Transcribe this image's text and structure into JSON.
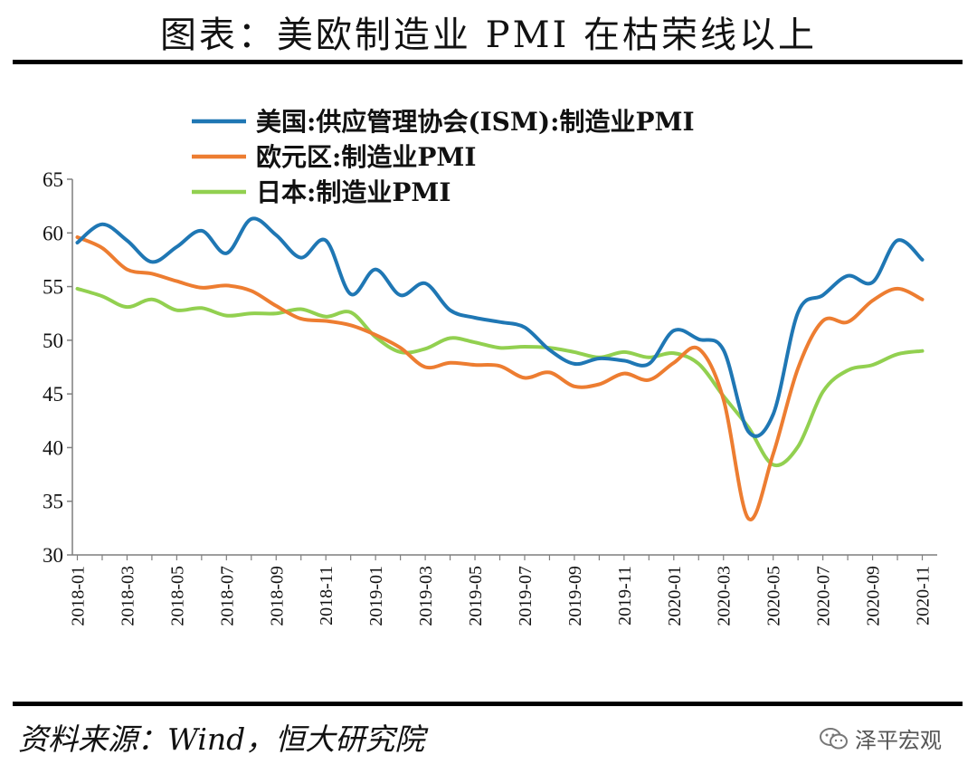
{
  "header": {
    "title": "图表：美欧制造业 PMI 在枯荣线以上"
  },
  "footer": {
    "source": "资料来源：Wind，恒大研究院",
    "watermark": "泽平宏观",
    "watermark_icon": "wechat-icon"
  },
  "colors": {
    "us": "#1f77b4",
    "euro": "#ed7d31",
    "japan": "#92d050",
    "axis": "#7f7f7f"
  },
  "chart_data": {
    "type": "line",
    "ylim": [
      30,
      65
    ],
    "yticks": [
      30,
      35,
      40,
      45,
      50,
      55,
      60,
      65
    ],
    "x": [
      "2018-01",
      "2018-02",
      "2018-03",
      "2018-04",
      "2018-05",
      "2018-06",
      "2018-07",
      "2018-08",
      "2018-09",
      "2018-10",
      "2018-11",
      "2018-12",
      "2019-01",
      "2019-02",
      "2019-03",
      "2019-04",
      "2019-05",
      "2019-06",
      "2019-07",
      "2019-08",
      "2019-09",
      "2019-10",
      "2019-11",
      "2019-12",
      "2020-01",
      "2020-02",
      "2020-03",
      "2020-04",
      "2020-05",
      "2020-06",
      "2020-07",
      "2020-08",
      "2020-09",
      "2020-10",
      "2020-11"
    ],
    "xtick_labels": [
      "2018-01",
      "2018-03",
      "2018-05",
      "2018-07",
      "2018-09",
      "2018-11",
      "2019-01",
      "2019-03",
      "2019-05",
      "2019-07",
      "2019-09",
      "2019-11",
      "2020-01",
      "2020-03",
      "2020-05",
      "2020-07",
      "2020-09",
      "2020-11"
    ],
    "legend_position": "top-left",
    "series": [
      {
        "name": "美国:供应管理协会(ISM):制造业PMI",
        "key": "us",
        "values": [
          59.1,
          60.8,
          59.3,
          57.3,
          58.7,
          60.2,
          58.1,
          61.3,
          59.8,
          57.7,
          59.3,
          54.3,
          56.6,
          54.2,
          55.3,
          52.8,
          52.1,
          51.7,
          51.2,
          49.1,
          47.8,
          48.3,
          48.1,
          47.8,
          50.9,
          50.1,
          49.1,
          41.5,
          43.1,
          52.6,
          54.2,
          56.0,
          55.4,
          59.3,
          57.5
        ]
      },
      {
        "name": "欧元区:制造业PMI",
        "key": "euro",
        "values": [
          59.6,
          58.6,
          56.6,
          56.2,
          55.5,
          54.9,
          55.1,
          54.6,
          53.2,
          52.0,
          51.8,
          51.4,
          50.5,
          49.3,
          47.5,
          47.9,
          47.7,
          47.6,
          46.5,
          47.0,
          45.7,
          45.9,
          46.9,
          46.3,
          47.9,
          49.2,
          44.5,
          33.4,
          39.4,
          47.4,
          51.8,
          51.7,
          53.7,
          54.8,
          53.8
        ]
      },
      {
        "name": "日本:制造业PMI",
        "key": "japan",
        "values": [
          54.8,
          54.1,
          53.1,
          53.8,
          52.8,
          53.0,
          52.3,
          52.5,
          52.5,
          52.9,
          52.2,
          52.6,
          50.3,
          48.9,
          49.2,
          50.2,
          49.8,
          49.3,
          49.4,
          49.3,
          48.9,
          48.4,
          48.9,
          48.4,
          48.8,
          47.8,
          44.8,
          41.9,
          38.4,
          40.1,
          45.2,
          47.2,
          47.7,
          48.7,
          49.0
        ]
      }
    ]
  }
}
